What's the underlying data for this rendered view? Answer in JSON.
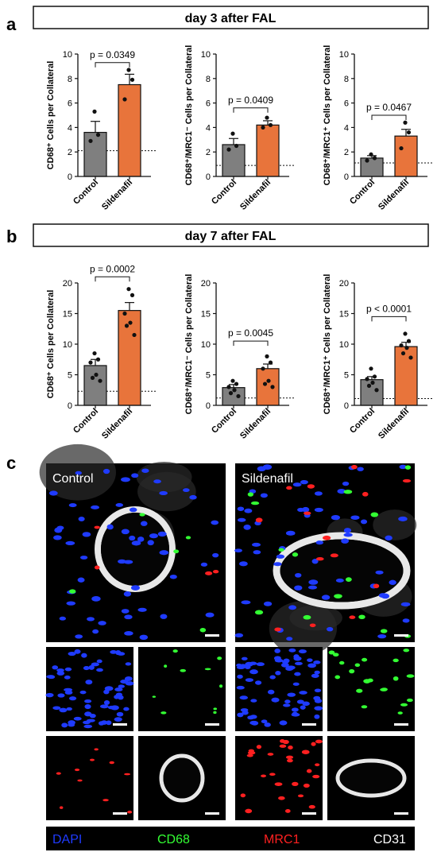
{
  "panels": {
    "a": {
      "letter": "a",
      "header": "day 3 after FAL"
    },
    "b": {
      "letter": "b",
      "header": "day 7 after FAL"
    },
    "c": {
      "letter": "c"
    }
  },
  "colors": {
    "control_bar": "#7f7f7f",
    "sildenafil_bar": "#e8743b",
    "dapi": "#1f3bff",
    "cd68": "#33ff33",
    "mrc1": "#ff2020",
    "cd31": "#ffffff"
  },
  "chart_data": [
    {
      "type": "bar",
      "panel": "a",
      "ylabel": "CD68⁺ Cells per Collateral",
      "categories": [
        "Control",
        "Sildenafil"
      ],
      "values": [
        3.6,
        7.5
      ],
      "sem": [
        0.9,
        0.85
      ],
      "points": [
        [
          5.3,
          3.4,
          2.9
        ],
        [
          8.7,
          7.9,
          6.3
        ]
      ],
      "ylim": [
        0,
        10
      ],
      "yticks": [
        0,
        2,
        4,
        6,
        8,
        10
      ],
      "reference_line": 2.1,
      "annotation": "p = 0.0349",
      "annotation_y": 9.3
    },
    {
      "type": "bar",
      "panel": "a",
      "ylabel": "CD68⁺/MRC1⁻ Cells per Collateral",
      "categories": [
        "Control",
        "Sildenafil"
      ],
      "values": [
        2.6,
        4.2
      ],
      "sem": [
        0.5,
        0.35
      ],
      "points": [
        [
          3.5,
          2.5,
          2.2
        ],
        [
          4.8,
          4.2,
          4.0
        ]
      ],
      "ylim": [
        0,
        10
      ],
      "yticks": [
        0,
        2,
        4,
        6,
        8,
        10
      ],
      "reference_line": 0.9,
      "annotation": "p = 0.0409",
      "annotation_y": 5.6
    },
    {
      "type": "bar",
      "panel": "a",
      "ylabel": "CD68⁺/MRC1⁺ Cells per Collateral",
      "categories": [
        "Control",
        "Sildenafil"
      ],
      "values": [
        1.5,
        3.3
      ],
      "sem": [
        0.2,
        0.55
      ],
      "points": [
        [
          1.8,
          1.5,
          1.3
        ],
        [
          4.4,
          3.6,
          2.3
        ]
      ],
      "ylim": [
        0,
        10
      ],
      "yticks": [
        0,
        2,
        4,
        6,
        8,
        10
      ],
      "reference_line": 1.1,
      "annotation": "p = 0.0467",
      "annotation_y": 5.0
    },
    {
      "type": "bar",
      "panel": "b",
      "ylabel": "CD68⁺ Cells per Collateral",
      "categories": [
        "Control",
        "Sildenafil"
      ],
      "values": [
        6.5,
        15.5
      ],
      "sem": [
        1.0,
        1.3
      ],
      "points": [
        [
          8.5,
          7.5,
          7.0,
          5.0,
          4.5,
          4.0
        ],
        [
          19.0,
          18.0,
          15.0,
          13.5,
          13.0,
          11.5
        ]
      ],
      "ylim": [
        0,
        20
      ],
      "yticks": [
        0,
        5,
        10,
        15,
        20
      ],
      "reference_line": 2.3,
      "annotation": "p = 0.0002",
      "annotation_y": 21.0
    },
    {
      "type": "bar",
      "panel": "b",
      "ylabel": "CD68⁺/MRC1⁻ Cells per Collateral",
      "categories": [
        "Control",
        "Sildenafil"
      ],
      "values": [
        2.9,
        6.0
      ],
      "sem": [
        0.5,
        0.75
      ],
      "points": [
        [
          4.0,
          3.5,
          3.0,
          2.5,
          2.0,
          1.5
        ],
        [
          8.0,
          7.0,
          6.0,
          4.0,
          3.5,
          3.0
        ]
      ],
      "ylim": [
        0,
        20
      ],
      "yticks": [
        0,
        5,
        10,
        15,
        20
      ],
      "reference_line": 1.2,
      "annotation": "p = 0.0045",
      "annotation_y": 10.5
    },
    {
      "type": "bar",
      "panel": "b",
      "ylabel": "CD68⁺/MRC1⁺ Cells per Collateral",
      "categories": [
        "Control",
        "Sildenafil"
      ],
      "values": [
        4.2,
        9.6
      ],
      "sem": [
        0.5,
        0.7
      ],
      "points": [
        [
          6.0,
          4.7,
          4.3,
          3.7,
          3.2,
          2.5
        ],
        [
          11.7,
          10.5,
          9.8,
          9.4,
          8.5,
          7.8
        ]
      ],
      "ylim": [
        0,
        20
      ],
      "yticks": [
        0,
        5,
        10,
        15,
        20
      ],
      "reference_line": 1.1,
      "annotation": "p < 0.0001",
      "annotation_y": 14.5
    }
  ],
  "microscopy": {
    "large_labels": [
      "Control",
      "Sildenafil"
    ],
    "legend": [
      {
        "label": "DAPI",
        "color": "#1f3bff"
      },
      {
        "label": "CD68",
        "color": "#33ff33"
      },
      {
        "label": "MRC1",
        "color": "#ff2020"
      },
      {
        "label": "CD31",
        "color": "#ffffff"
      }
    ]
  }
}
